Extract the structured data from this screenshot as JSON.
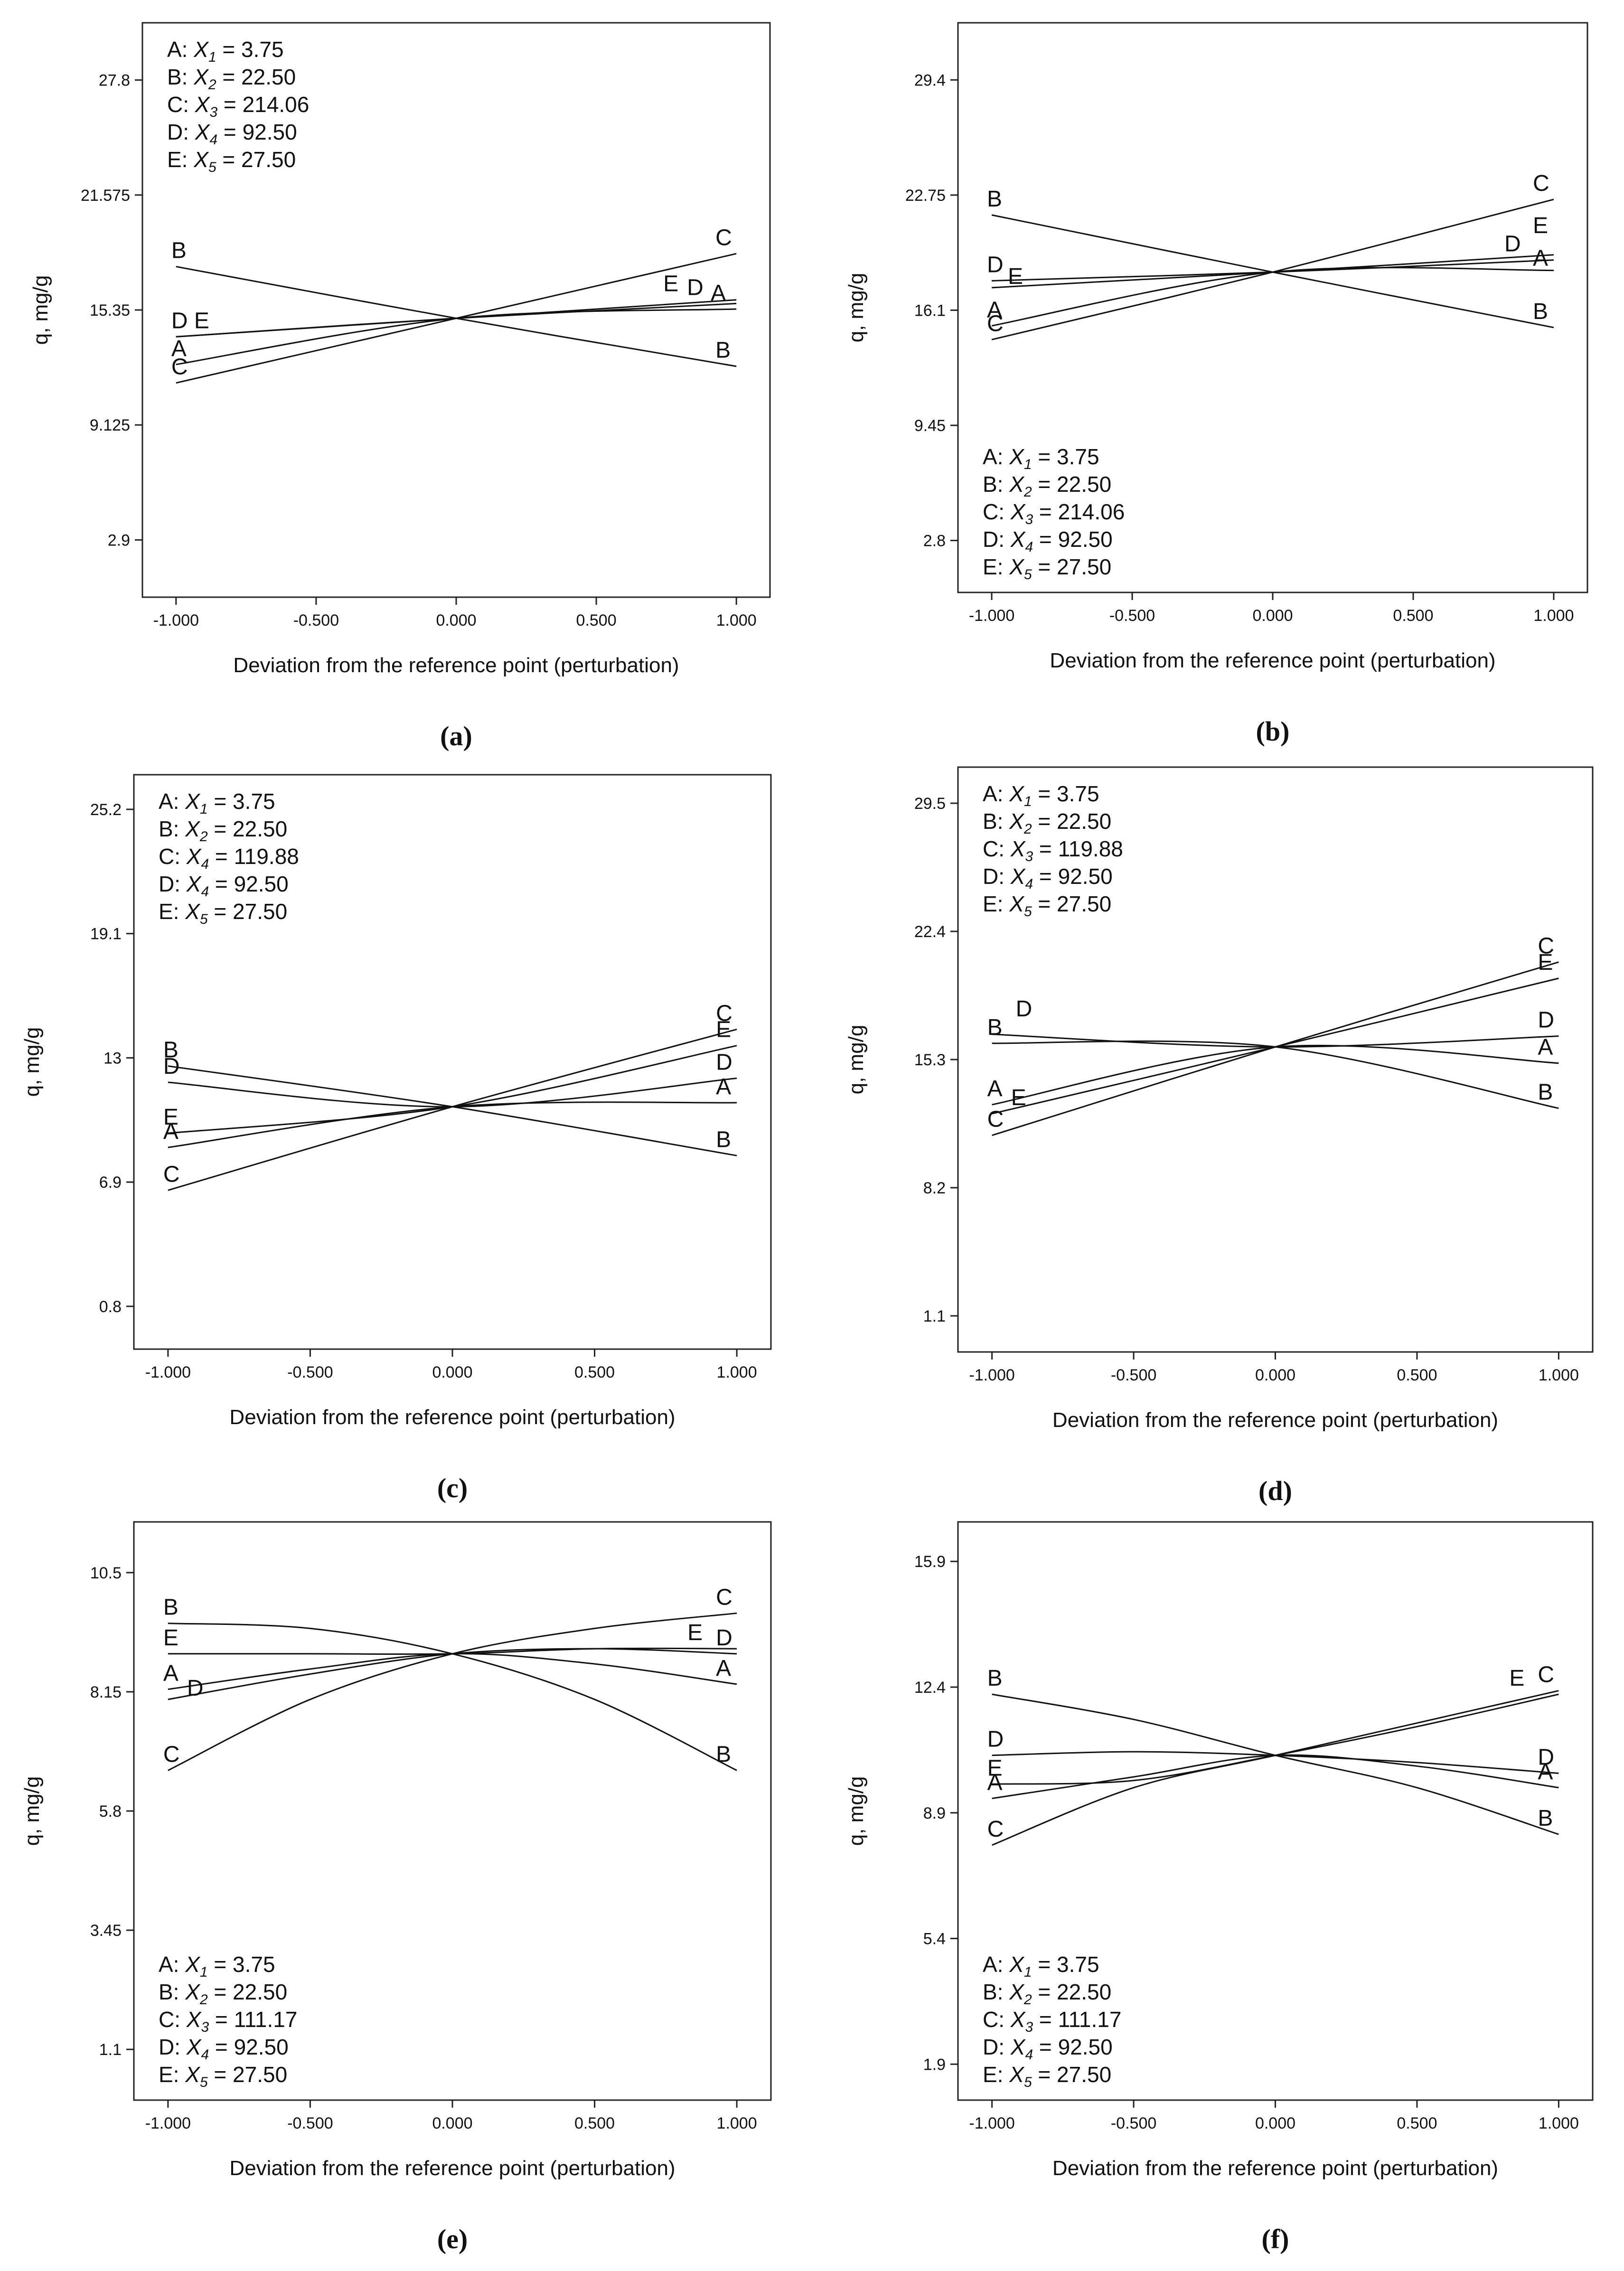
{
  "chart_data": [
    {
      "id": "a",
      "type": "line",
      "panel_label": "(a)",
      "xlabel": "Deviation from the reference point (perturbation)",
      "ylabel": "q, mg/g",
      "xlim": [
        -1.12,
        1.12
      ],
      "ylim": [
        -0.2,
        30.9
      ],
      "xticks": [
        -1,
        -0.5,
        0,
        0.5,
        1
      ],
      "xtick_labels": [
        "-1.000",
        "-0.500",
        "0.000",
        "0.500",
        "1.000"
      ],
      "yticks": [
        27.8,
        21.575,
        15.35,
        9.125,
        2.9
      ],
      "ytick_labels": [
        "27.8",
        "21.575",
        "15.35",
        "9.125",
        "2.9"
      ],
      "legend_position": "top-left",
      "legend": [
        "A: X1 = 3.75",
        "B: X2 = 22.50",
        "C: X3 = 214.06",
        "D: X4 = 92.50",
        "E: X5 = 27.50"
      ],
      "series": [
        {
          "name": "A",
          "x": [
            -1,
            0,
            1
          ],
          "y": [
            12.4,
            14.9,
            15.4
          ],
          "left_label": "A",
          "right_label": "A"
        },
        {
          "name": "B",
          "x": [
            -1,
            0,
            1
          ],
          "y": [
            17.7,
            14.9,
            12.3
          ],
          "left_label": "B",
          "right_label": "B"
        },
        {
          "name": "C",
          "x": [
            -1,
            0,
            1
          ],
          "y": [
            11.4,
            14.9,
            18.4
          ],
          "left_label": "C",
          "right_label": "C"
        },
        {
          "name": "D",
          "x": [
            -1,
            0,
            1
          ],
          "y": [
            13.9,
            14.9,
            15.7
          ],
          "left_label": "D",
          "right_label": "D"
        },
        {
          "name": "E",
          "x": [
            -1,
            0,
            1
          ],
          "y": [
            13.9,
            14.9,
            15.9
          ],
          "left_label": "E",
          "right_label": "E"
        }
      ]
    },
    {
      "id": "b",
      "type": "line",
      "panel_label": "(b)",
      "xlabel": "Deviation from the reference point (perturbation)",
      "ylabel": "q, mg/g",
      "xlim": [
        -1.12,
        1.12
      ],
      "ylim": [
        -0.2,
        32.7
      ],
      "xticks": [
        -1,
        -0.5,
        0,
        0.5,
        1
      ],
      "xtick_labels": [
        "-1.000",
        "-0.500",
        "0.000",
        "0.500",
        "1.000"
      ],
      "yticks": [
        29.4,
        22.75,
        16.1,
        9.45,
        2.8
      ],
      "ytick_labels": [
        "29.4",
        "22.75",
        "16.1",
        "9.45",
        "2.8"
      ],
      "legend_position": "bottom-left",
      "legend": [
        "A: X1 = 3.75",
        "B: X2 = 22.50",
        "C: X3 = 214.06",
        "D: X4 = 92.50",
        "E: X5 = 27.50"
      ],
      "series": [
        {
          "name": "A",
          "x": [
            -1,
            0,
            1
          ],
          "y": [
            15.2,
            18.3,
            18.4
          ],
          "left_label": "A",
          "right_label": "A"
        },
        {
          "name": "B",
          "x": [
            -1,
            0,
            1
          ],
          "y": [
            21.6,
            18.3,
            15.1
          ],
          "left_label": "B",
          "right_label": "B"
        },
        {
          "name": "C",
          "x": [
            -1,
            0,
            1
          ],
          "y": [
            14.4,
            18.3,
            22.5
          ],
          "left_label": "C",
          "right_label": "C"
        },
        {
          "name": "D",
          "x": [
            -1,
            0,
            1
          ],
          "y": [
            17.8,
            18.3,
            19.0
          ],
          "left_label": "D",
          "right_label": "D"
        },
        {
          "name": "E",
          "x": [
            -1,
            0,
            1
          ],
          "y": [
            17.4,
            18.3,
            19.3
          ],
          "left_label": "E",
          "right_label": "E"
        }
      ]
    },
    {
      "id": "c",
      "type": "line",
      "panel_label": "(c)",
      "xlabel": "Deviation from the reference point (perturbation)",
      "ylabel": "q, mg/g",
      "xlim": [
        -1.12,
        1.12
      ],
      "ylim": [
        -1.3,
        26.9
      ],
      "xticks": [
        -1,
        -0.5,
        0,
        0.5,
        1
      ],
      "xtick_labels": [
        "-1.000",
        "-0.500",
        "0.000",
        "0.500",
        "1.000"
      ],
      "yticks": [
        25.2,
        19.1,
        13,
        6.9,
        0.8
      ],
      "ytick_labels": [
        "25.2",
        "19.1",
        "13",
        "6.9",
        "0.8"
      ],
      "legend_position": "top-left",
      "legend": [
        "A: X1 = 3.75",
        "B: X2 = 22.50",
        "C: X4 = 119.88",
        "D: X4 = 92.50",
        "E: X5 = 27.50"
      ],
      "series": [
        {
          "name": "A",
          "x": [
            -1,
            0,
            1
          ],
          "y": [
            8.6,
            10.6,
            10.8
          ],
          "left_label": "A",
          "right_label": "A"
        },
        {
          "name": "B",
          "x": [
            -1,
            0,
            1
          ],
          "y": [
            12.6,
            10.6,
            8.2
          ],
          "left_label": "B",
          "right_label": "B"
        },
        {
          "name": "C",
          "x": [
            -1,
            0,
            1
          ],
          "y": [
            6.5,
            10.6,
            14.4
          ],
          "left_label": "C",
          "right_label": "C"
        },
        {
          "name": "D",
          "x": [
            -1,
            0,
            1
          ],
          "y": [
            11.8,
            10.6,
            12.0
          ],
          "left_label": "D",
          "right_label": "D"
        },
        {
          "name": "E",
          "x": [
            -1,
            0,
            1
          ],
          "y": [
            9.3,
            10.6,
            13.6
          ],
          "left_label": "E",
          "right_label": "E"
        }
      ]
    },
    {
      "id": "d",
      "type": "line",
      "panel_label": "(d)",
      "xlabel": "Deviation from the reference point (perturbation)",
      "ylabel": "q, mg/g",
      "xlim": [
        -1.12,
        1.12
      ],
      "ylim": [
        -0.9,
        31.5
      ],
      "xticks": [
        -1,
        -0.5,
        0,
        0.5,
        1
      ],
      "xtick_labels": [
        "-1.000",
        "-0.500",
        "0.000",
        "0.500",
        "1.000"
      ],
      "yticks": [
        29.5,
        22.4,
        15.3,
        8.2,
        1.1
      ],
      "ytick_labels": [
        "29.5",
        "22.4",
        "15.3",
        "8.2",
        "1.1"
      ],
      "legend_position": "top-left",
      "legend": [
        "A: X1 = 3.75",
        "B: X2 = 22.50",
        "C: X3 = 119.88",
        "D: X4 = 92.50",
        "E: X5 = 27.50"
      ],
      "series": [
        {
          "name": "A",
          "x": [
            -1,
            0,
            1
          ],
          "y": [
            12.8,
            16.0,
            15.1
          ],
          "left_label": "A",
          "right_label": "A"
        },
        {
          "name": "B",
          "x": [
            -1,
            0,
            1
          ],
          "y": [
            16.2,
            16.0,
            12.6
          ],
          "left_label": "B",
          "right_label": "B"
        },
        {
          "name": "C",
          "x": [
            -1,
            0,
            1
          ],
          "y": [
            11.1,
            16.0,
            20.7
          ],
          "left_label": "C",
          "right_label": "C"
        },
        {
          "name": "D",
          "x": [
            -1,
            0,
            1
          ],
          "y": [
            16.7,
            16.0,
            16.6
          ],
          "left_label": "D",
          "right_label": "D"
        },
        {
          "name": "E",
          "x": [
            -1,
            0,
            1
          ],
          "y": [
            12.3,
            16.0,
            19.8
          ],
          "left_label": "E",
          "right_label": "E"
        }
      ]
    },
    {
      "id": "e",
      "type": "line",
      "panel_label": "(e)",
      "xlabel": "Deviation from the reference point (perturbation)",
      "ylabel": "q, mg/g",
      "xlim": [
        -1.12,
        1.12
      ],
      "ylim": [
        0.1,
        11.5
      ],
      "xticks": [
        -1,
        -0.5,
        0,
        0.5,
        1
      ],
      "xtick_labels": [
        "-1.000",
        "-0.500",
        "0.000",
        "0.500",
        "1.000"
      ],
      "yticks": [
        10.5,
        8.15,
        5.8,
        3.45,
        1.1
      ],
      "ytick_labels": [
        "10.5",
        "8.15",
        "5.8",
        "3.45",
        "1.1"
      ],
      "legend_position": "bottom-left",
      "legend": [
        "A: X1 = 3.75",
        "B: X2 = 22.50",
        "C: X3 = 111.17",
        "D: X4 = 92.50",
        "E: X5 = 27.50"
      ],
      "series": [
        {
          "name": "A",
          "x": [
            -1,
            -0.5,
            0,
            0.5,
            1
          ],
          "y": [
            8.2,
            8.6,
            8.9,
            8.7,
            8.3
          ],
          "left_label": "A",
          "right_label": "A"
        },
        {
          "name": "B",
          "x": [
            -1,
            -0.5,
            0,
            0.5,
            1
          ],
          "y": [
            9.5,
            9.4,
            8.9,
            8.0,
            6.6
          ],
          "left_label": "B",
          "right_label": "B"
        },
        {
          "name": "C",
          "x": [
            -1,
            -0.5,
            0,
            0.5,
            1
          ],
          "y": [
            6.6,
            8.0,
            8.9,
            9.4,
            9.7
          ],
          "left_label": "C",
          "right_label": "C"
        },
        {
          "name": "D",
          "x": [
            -1,
            -0.5,
            0,
            0.5,
            1
          ],
          "y": [
            8.0,
            8.5,
            8.9,
            9.0,
            8.9
          ],
          "left_label": "D",
          "right_label": "D"
        },
        {
          "name": "E",
          "x": [
            -1,
            -0.5,
            0,
            0.5,
            1
          ],
          "y": [
            8.9,
            8.9,
            8.9,
            9.0,
            9.0
          ],
          "left_label": "E",
          "right_label": "E"
        }
      ]
    },
    {
      "id": "f",
      "type": "line",
      "panel_label": "(f)",
      "xlabel": "Deviation from the reference point (perturbation)",
      "ylabel": "q, mg/g",
      "xlim": [
        -1.12,
        1.12
      ],
      "ylim": [
        0.9,
        17.0
      ],
      "xticks": [
        -1,
        -0.5,
        0,
        0.5,
        1
      ],
      "xtick_labels": [
        "-1.000",
        "-0.500",
        "0.000",
        "0.500",
        "1.000"
      ],
      "yticks": [
        15.9,
        12.4,
        8.9,
        5.4,
        1.9
      ],
      "ytick_labels": [
        "15.9",
        "12.4",
        "8.9",
        "5.4",
        "1.9"
      ],
      "legend_position": "bottom-left",
      "legend": [
        "A: X1 = 3.75",
        "B: X2 = 22.50",
        "C: X3 = 111.17",
        "D: X4 = 92.50",
        "E: X5 = 27.50"
      ],
      "series": [
        {
          "name": "A",
          "x": [
            -1,
            -0.5,
            0,
            0.5,
            1
          ],
          "y": [
            9.3,
            9.9,
            10.5,
            10.2,
            9.6
          ],
          "left_label": "A",
          "right_label": "A"
        },
        {
          "name": "B",
          "x": [
            -1,
            -0.5,
            0,
            0.5,
            1
          ],
          "y": [
            12.2,
            11.5,
            10.5,
            9.6,
            8.3
          ],
          "left_label": "B",
          "right_label": "B"
        },
        {
          "name": "C",
          "x": [
            -1,
            -0.5,
            0,
            0.5,
            1
          ],
          "y": [
            8.0,
            9.6,
            10.5,
            11.4,
            12.3
          ],
          "left_label": "C",
          "right_label": "C"
        },
        {
          "name": "D",
          "x": [
            -1,
            -0.5,
            0,
            0.5,
            1
          ],
          "y": [
            10.5,
            10.6,
            10.5,
            10.3,
            10.0
          ],
          "left_label": "D",
          "right_label": "D"
        },
        {
          "name": "E",
          "x": [
            -1,
            -0.5,
            0,
            0.5,
            1
          ],
          "y": [
            9.7,
            9.8,
            10.5,
            11.3,
            12.2
          ],
          "left_label": "E",
          "right_label": "E"
        }
      ]
    }
  ]
}
